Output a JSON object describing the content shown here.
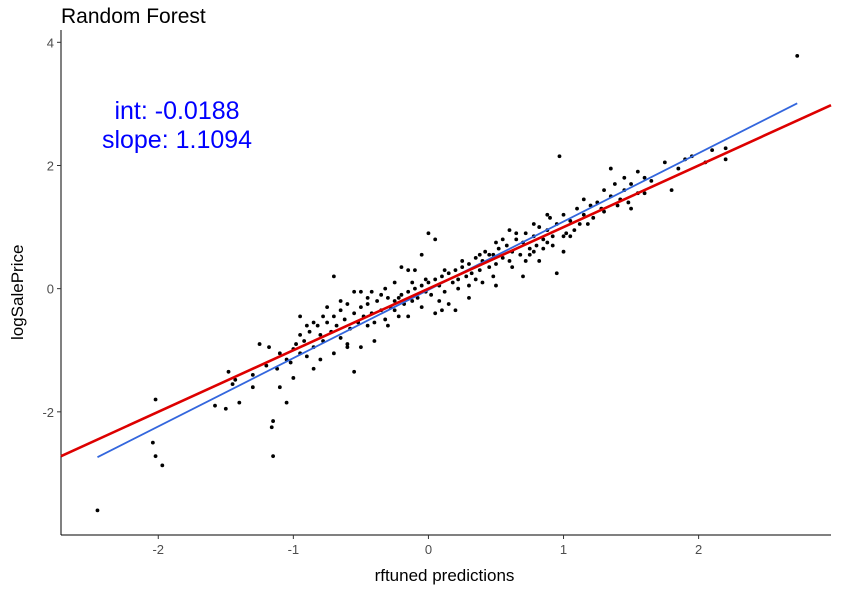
{
  "chart_data": {
    "type": "scatter",
    "title": "Random Forest",
    "xlabel": "rftuned predictions",
    "ylabel": "logSalePrice",
    "xlim": [
      -2.72,
      2.98
    ],
    "ylim": [
      -4.0,
      4.2
    ],
    "x_ticks": [
      -2,
      -1,
      0,
      1,
      2
    ],
    "y_ticks": [
      -2,
      0,
      2,
      4
    ],
    "x_tick_labels": [
      "-2",
      "-1",
      "0",
      "1",
      "2"
    ],
    "y_tick_labels": [
      "-2",
      "0",
      "2",
      "4"
    ],
    "grid": false,
    "annotation": {
      "line1": "int: -0.0188",
      "line2": "slope: 1.1094",
      "color": "#0000ff"
    },
    "reference_line": {
      "intercept": 0,
      "slope": 1,
      "color": "#dd0000"
    },
    "fit_line": {
      "intercept": -0.0188,
      "slope": 1.1094,
      "x_range": [
        -2.45,
        2.73
      ],
      "color": "#3366dd"
    },
    "point_color": "#000000",
    "points": [
      [
        -2.45,
        -3.6
      ],
      [
        2.73,
        3.78
      ],
      [
        -1.97,
        -2.87
      ],
      [
        -2.02,
        -2.72
      ],
      [
        -2.04,
        -2.5
      ],
      [
        -2.02,
        -1.8
      ],
      [
        -1.15,
        -2.72
      ],
      [
        -1.16,
        -2.25
      ],
      [
        -1.15,
        -2.15
      ],
      [
        -1.05,
        -1.85
      ],
      [
        -1.1,
        -1.6
      ],
      [
        -1.58,
        -1.9
      ],
      [
        -1.5,
        -1.95
      ],
      [
        -1.45,
        -1.55
      ],
      [
        -1.43,
        -1.48
      ],
      [
        -1.48,
        -1.35
      ],
      [
        -1.3,
        -1.6
      ],
      [
        -1.3,
        -1.4
      ],
      [
        -1.4,
        -1.85
      ],
      [
        -1.2,
        -1.25
      ],
      [
        -1.18,
        -0.95
      ],
      [
        -1.1,
        -1.05
      ],
      [
        -1.05,
        -1.15
      ],
      [
        -1.02,
        -1.2
      ],
      [
        -1.0,
        -0.98
      ],
      [
        -0.98,
        -0.9
      ],
      [
        -0.95,
        -1.05
      ],
      [
        -0.95,
        -0.75
      ],
      [
        -0.92,
        -0.85
      ],
      [
        -0.9,
        -1.1
      ],
      [
        -0.88,
        -0.7
      ],
      [
        -0.85,
        -1.3
      ],
      [
        -0.85,
        -0.95
      ],
      [
        -0.82,
        -0.6
      ],
      [
        -0.8,
        -0.75
      ],
      [
        -0.78,
        -0.85
      ],
      [
        -0.75,
        -0.55
      ],
      [
        -0.72,
        -0.7
      ],
      [
        -0.7,
        -0.45
      ],
      [
        -0.68,
        -0.6
      ],
      [
        -0.65,
        -0.8
      ],
      [
        -0.65,
        -0.35
      ],
      [
        -0.62,
        -0.5
      ],
      [
        -0.6,
        -0.9
      ],
      [
        -0.58,
        -0.65
      ],
      [
        -0.55,
        -0.4
      ],
      [
        -0.55,
        -1.35
      ],
      [
        -0.52,
        -0.55
      ],
      [
        -0.5,
        -0.3
      ],
      [
        -0.48,
        -0.45
      ],
      [
        -0.45,
        -0.6
      ],
      [
        -0.45,
        -0.25
      ],
      [
        -0.42,
        -0.4
      ],
      [
        -0.4,
        -0.55
      ],
      [
        -0.38,
        -0.2
      ],
      [
        -0.35,
        -0.35
      ],
      [
        -0.32,
        -0.5
      ],
      [
        -0.3,
        -0.15
      ],
      [
        -0.28,
        -0.3
      ],
      [
        -0.25,
        -0.2
      ],
      [
        -0.22,
        -0.45
      ],
      [
        -0.2,
        -0.1
      ],
      [
        -0.18,
        -0.25
      ],
      [
        -0.15,
        -0.05
      ],
      [
        -0.12,
        -0.2
      ],
      [
        -0.1,
        0.0
      ],
      [
        -0.08,
        -0.15
      ],
      [
        -0.05,
        0.05
      ],
      [
        -0.02,
        -0.05
      ],
      [
        0.0,
        0.1
      ],
      [
        0.02,
        -0.1
      ],
      [
        0.05,
        0.15
      ],
      [
        0.08,
        0.05
      ],
      [
        0.1,
        0.2
      ],
      [
        0.12,
        -0.05
      ],
      [
        0.15,
        0.25
      ],
      [
        0.18,
        0.1
      ],
      [
        0.2,
        0.3
      ],
      [
        0.22,
        0.15
      ],
      [
        0.25,
        0.35
      ],
      [
        0.28,
        0.2
      ],
      [
        0.3,
        0.4
      ],
      [
        0.32,
        0.25
      ],
      [
        0.35,
        0.5
      ],
      [
        0.38,
        0.3
      ],
      [
        0.4,
        0.45
      ],
      [
        0.42,
        0.6
      ],
      [
        0.45,
        0.35
      ],
      [
        0.48,
        0.55
      ],
      [
        0.5,
        0.4
      ],
      [
        0.52,
        0.65
      ],
      [
        0.55,
        0.5
      ],
      [
        0.58,
        0.7
      ],
      [
        0.6,
        0.45
      ],
      [
        0.62,
        0.6
      ],
      [
        0.65,
        0.8
      ],
      [
        0.68,
        0.55
      ],
      [
        0.7,
        0.75
      ],
      [
        0.72,
        0.9
      ],
      [
        0.75,
        0.65
      ],
      [
        0.78,
        0.85
      ],
      [
        0.8,
        0.7
      ],
      [
        0.82,
        1.0
      ],
      [
        0.85,
        0.8
      ],
      [
        0.88,
        0.95
      ],
      [
        0.9,
        1.15
      ],
      [
        0.92,
        0.85
      ],
      [
        0.95,
        1.05
      ],
      [
        1.0,
        1.2
      ],
      [
        1.02,
        0.9
      ],
      [
        1.05,
        1.1
      ],
      [
        1.08,
        0.95
      ],
      [
        1.1,
        1.3
      ],
      [
        1.12,
        1.05
      ],
      [
        1.15,
        1.2
      ],
      [
        1.2,
        1.35
      ],
      [
        1.22,
        1.15
      ],
      [
        1.25,
        1.4
      ],
      [
        1.3,
        1.25
      ],
      [
        1.35,
        1.5
      ],
      [
        1.4,
        1.35
      ],
      [
        1.45,
        1.6
      ],
      [
        1.48,
        1.4
      ],
      [
        1.5,
        1.7
      ],
      [
        1.55,
        1.55
      ],
      [
        1.6,
        1.8
      ],
      [
        1.65,
        1.75
      ],
      [
        1.8,
        1.6
      ],
      [
        1.85,
        1.95
      ],
      [
        1.9,
        2.1
      ],
      [
        1.95,
        2.15
      ],
      [
        2.05,
        2.05
      ],
      [
        2.1,
        2.25
      ],
      [
        2.2,
        2.1
      ],
      [
        2.2,
        2.28
      ],
      [
        1.75,
        2.05
      ],
      [
        1.45,
        1.8
      ],
      [
        1.35,
        1.95
      ],
      [
        0.97,
        2.15
      ],
      [
        0.95,
        0.25
      ],
      [
        0.88,
        0.75
      ],
      [
        1.0,
        0.85
      ],
      [
        1.15,
        1.45
      ],
      [
        0.7,
        0.2
      ],
      [
        0.5,
        0.05
      ],
      [
        0.3,
        0.05
      ],
      [
        0.1,
        -0.35
      ],
      [
        0.05,
        -0.4
      ],
      [
        0.0,
        0.9
      ],
      [
        0.05,
        0.8
      ],
      [
        -0.05,
        0.55
      ],
      [
        -0.1,
        0.3
      ],
      [
        -0.2,
        0.35
      ],
      [
        -0.25,
        0.1
      ],
      [
        -0.15,
        0.3
      ],
      [
        -0.3,
        -0.6
      ],
      [
        -0.4,
        -0.85
      ],
      [
        -0.5,
        -0.95
      ],
      [
        -0.6,
        -0.95
      ],
      [
        -0.7,
        -1.05
      ],
      [
        -0.8,
        -1.15
      ],
      [
        -0.7,
        0.2
      ],
      [
        -0.55,
        -0.05
      ],
      [
        -0.45,
        -0.15
      ],
      [
        0.2,
        -0.35
      ],
      [
        0.15,
        -0.25
      ],
      [
        0.3,
        -0.15
      ],
      [
        0.4,
        0.1
      ],
      [
        0.45,
        0.55
      ],
      [
        0.55,
        0.8
      ],
      [
        0.6,
        0.95
      ],
      [
        0.75,
        0.55
      ],
      [
        0.82,
        0.45
      ],
      [
        1.05,
        0.85
      ],
      [
        1.18,
        1.05
      ],
      [
        1.28,
        1.3
      ],
      [
        1.42,
        1.45
      ],
      [
        1.5,
        1.3
      ],
      [
        1.6,
        1.55
      ],
      [
        -0.95,
        -0.45
      ],
      [
        -0.85,
        -0.55
      ],
      [
        -0.75,
        -0.3
      ],
      [
        -0.65,
        -0.2
      ],
      [
        -0.5,
        -0.05
      ],
      [
        -0.35,
        -0.1
      ],
      [
        -0.25,
        -0.35
      ],
      [
        -0.15,
        -0.45
      ],
      [
        -0.05,
        -0.3
      ],
      [
        0.08,
        -0.2
      ],
      [
        0.22,
        0.0
      ],
      [
        0.35,
        0.15
      ],
      [
        0.48,
        0.2
      ],
      [
        0.62,
        0.35
      ],
      [
        0.72,
        0.45
      ],
      [
        0.78,
        0.6
      ],
      [
        0.85,
        0.65
      ],
      [
        0.92,
        0.7
      ],
      [
        1.0,
        0.6
      ],
      [
        -1.25,
        -0.9
      ],
      [
        -1.12,
        -1.3
      ],
      [
        -1.0,
        -1.45
      ],
      [
        -0.9,
        -0.6
      ],
      [
        -0.78,
        -0.45
      ],
      [
        -0.6,
        -0.25
      ],
      [
        -0.42,
        -0.05
      ],
      [
        -0.32,
        0.0
      ],
      [
        -0.22,
        -0.15
      ],
      [
        -0.12,
        0.1
      ],
      [
        -0.02,
        0.15
      ],
      [
        0.12,
        0.3
      ],
      [
        0.25,
        0.45
      ],
      [
        0.38,
        0.55
      ],
      [
        0.5,
        0.75
      ],
      [
        0.65,
        0.9
      ],
      [
        0.78,
        1.05
      ],
      [
        0.88,
        1.2
      ],
      [
        1.3,
        1.6
      ],
      [
        1.38,
        1.7
      ],
      [
        1.55,
        1.9
      ]
    ]
  }
}
